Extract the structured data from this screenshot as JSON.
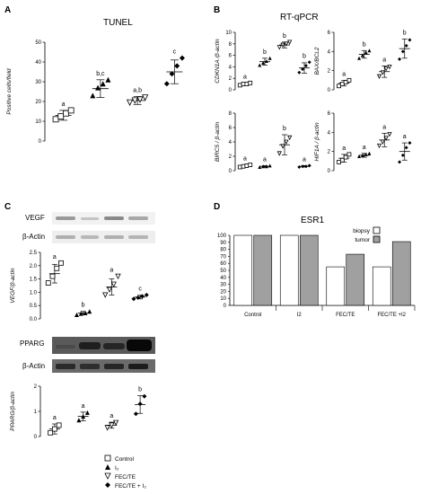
{
  "panels": {
    "A": "A",
    "B": "B",
    "C": "C",
    "D": "D"
  },
  "legend_c": [
    "Control",
    "I₂",
    "FEC/TE",
    "FEC/TE + I₂"
  ],
  "legend_d": [
    "biopsy",
    "tumor"
  ],
  "gels": {
    "vegf_label": "VEGF",
    "bactin_label1": "β-Actin",
    "pparg_label": "PPARG",
    "bactin_label2": "β-Actin"
  },
  "colors": {
    "tumor_bar": "#a0a0a0",
    "biopsy_bar": "#ffffff",
    "axis": "#000000"
  },
  "chart_data": [
    {
      "id": "tunel",
      "type": "scatter",
      "title": "TUNEL",
      "ylabel": "Positive cells/field",
      "ylim": [
        0,
        50
      ],
      "yticks": [
        "0",
        "10",
        "20",
        "30",
        "40",
        "50"
      ],
      "categories": [
        "Control",
        "I2",
        "FEC/TE",
        "FEC/TE + I2"
      ],
      "markers": [
        "square-open",
        "triangle-filled",
        "triangle-open",
        "diamond-filled"
      ],
      "series": [
        {
          "values": [
            11,
            12.5,
            14,
            15.5
          ],
          "mean": 13,
          "sd": 2.5,
          "letter": "a"
        },
        {
          "values": [
            23,
            27,
            29,
            31
          ],
          "mean": 26.5,
          "sd": 4.5,
          "letter": "b,c"
        },
        {
          "values": [
            19.5,
            20.5,
            21,
            22
          ],
          "mean": 20.5,
          "sd": 2,
          "letter": "a,b"
        },
        {
          "values": [
            29,
            34,
            38,
            42
          ],
          "mean": 35,
          "sd": 6,
          "letter": "c"
        }
      ]
    },
    {
      "id": "cdkn1a",
      "type": "scatter",
      "group_title": "RT-qPCR",
      "ylabel": "CDKN1A /β-actin",
      "ylim": [
        0,
        10
      ],
      "yticks": [
        "0",
        "2",
        "4",
        "6",
        "8",
        "10"
      ],
      "categories": [
        "Control",
        "I2",
        "FEC/TE",
        "FEC/TE + I2"
      ],
      "markers": [
        "square-open",
        "triangle-filled",
        "triangle-open",
        "diamond-filled"
      ],
      "series": [
        {
          "values": [
            0.8,
            1.0,
            1.0,
            1.2
          ],
          "mean": 1.0,
          "sd": 0.2,
          "letter": "a"
        },
        {
          "values": [
            4.3,
            4.7,
            5.0,
            5.5
          ],
          "mean": 4.9,
          "sd": 0.6,
          "letter": "b"
        },
        {
          "values": [
            7.4,
            7.8,
            8.0,
            8.3
          ],
          "mean": 7.8,
          "sd": 0.5,
          "letter": "b"
        },
        {
          "values": [
            3.0,
            3.6,
            4.2,
            4.8
          ],
          "mean": 3.8,
          "sd": 0.9,
          "letter": "b"
        }
      ]
    },
    {
      "id": "baxbcl2",
      "type": "scatter",
      "ylabel": "BAX/BCL2",
      "ylim": [
        0,
        6
      ],
      "yticks": [
        "0",
        "2",
        "4",
        "6"
      ],
      "categories": [
        "Control",
        "I2",
        "FEC/TE",
        "FEC/TE + I2"
      ],
      "markers": [
        "square-open",
        "triangle-filled",
        "triangle-open",
        "diamond-filled"
      ],
      "series": [
        {
          "values": [
            0.4,
            0.6,
            0.8,
            1.0
          ],
          "mean": 0.7,
          "sd": 0.3,
          "letter": "a"
        },
        {
          "values": [
            3.3,
            3.6,
            3.9,
            4.1
          ],
          "mean": 3.7,
          "sd": 0.4,
          "letter": "b"
        },
        {
          "values": [
            1.4,
            1.8,
            2.2,
            2.4
          ],
          "mean": 1.9,
          "sd": 0.6,
          "letter": "a"
        },
        {
          "values": [
            3.2,
            4.0,
            4.6,
            5.2
          ],
          "mean": 4.3,
          "sd": 1.0,
          "letter": "b"
        }
      ]
    },
    {
      "id": "birc5",
      "type": "scatter",
      "ylabel": "BIRC5 / β-actin",
      "ylim": [
        0,
        8
      ],
      "yticks": [
        "0",
        "2",
        "4",
        "6",
        "8"
      ],
      "categories": [
        "Control",
        "I2",
        "FEC/TE",
        "FEC/TE + I2"
      ],
      "markers": [
        "square-open",
        "triangle-filled",
        "triangle-open",
        "diamond-filled"
      ],
      "series": [
        {
          "values": [
            0.5,
            0.6,
            0.7,
            0.8
          ],
          "mean": 0.6,
          "sd": 0.15,
          "letter": "a"
        },
        {
          "values": [
            0.5,
            0.6,
            0.6,
            0.7
          ],
          "mean": 0.6,
          "sd": 0.1,
          "letter": "a"
        },
        {
          "values": [
            2.4,
            3.4,
            4.0,
            4.6
          ],
          "mean": 3.6,
          "sd": 1.4,
          "letter": "b"
        },
        {
          "values": [
            0.5,
            0.6,
            0.6,
            0.7
          ],
          "mean": 0.6,
          "sd": 0.1,
          "letter": "a"
        }
      ]
    },
    {
      "id": "hif1a",
      "type": "scatter",
      "ylabel": "HIF1A / β-actin",
      "ylim": [
        0,
        6
      ],
      "yticks": [
        "0",
        "2",
        "4",
        "6"
      ],
      "categories": [
        "Control",
        "I2",
        "FEC/TE",
        "FEC/TE + I2"
      ],
      "markers": [
        "square-open",
        "triangle-filled",
        "triangle-open",
        "diamond-filled"
      ],
      "series": [
        {
          "values": [
            0.9,
            1.1,
            1.4,
            1.7
          ],
          "mean": 1.3,
          "sd": 0.4,
          "letter": "a"
        },
        {
          "values": [
            1.5,
            1.6,
            1.7,
            1.8
          ],
          "mean": 1.6,
          "sd": 0.2,
          "letter": "a"
        },
        {
          "values": [
            2.6,
            3.0,
            3.4,
            3.8
          ],
          "mean": 3.2,
          "sd": 0.7,
          "letter": "a"
        },
        {
          "values": [
            0.9,
            1.6,
            2.4,
            2.9
          ],
          "mean": 2.0,
          "sd": 0.9,
          "letter": "a"
        }
      ]
    },
    {
      "id": "vegf",
      "type": "scatter",
      "ylabel": "VEGF/β-actin",
      "ylim": [
        0,
        2.5
      ],
      "yticks": [
        "0.0",
        "0.5",
        "1.0",
        "1.5",
        "2.0",
        "2.5"
      ],
      "categories": [
        "Control",
        "I2",
        "FEC/TE",
        "FEC/TE + I2"
      ],
      "markers": [
        "square-open",
        "triangle-filled",
        "triangle-open",
        "diamond-filled"
      ],
      "series": [
        {
          "values": [
            1.35,
            1.6,
            1.9,
            2.1
          ],
          "mean": 1.7,
          "sd": 0.35,
          "letter": "a"
        },
        {
          "values": [
            0.15,
            0.2,
            0.22,
            0.28
          ],
          "mean": 0.22,
          "sd": 0.06,
          "letter": "b"
        },
        {
          "values": [
            0.9,
            1.1,
            1.3,
            1.6
          ],
          "mean": 1.2,
          "sd": 0.3,
          "letter": "a"
        },
        {
          "values": [
            0.75,
            0.8,
            0.85,
            0.9
          ],
          "mean": 0.82,
          "sd": 0.07,
          "letter": "c"
        }
      ]
    },
    {
      "id": "pparg",
      "type": "scatter",
      "ylabel": "PPARG/β-actin",
      "ylim": [
        0,
        2
      ],
      "yticks": [
        "0",
        "1",
        "2"
      ],
      "categories": [
        "Control",
        "I2",
        "FEC/TE",
        "FEC/TE + I2"
      ],
      "markers": [
        "square-open",
        "triangle-filled",
        "triangle-open",
        "diamond-filled"
      ],
      "series": [
        {
          "values": [
            0.15,
            0.3,
            0.45
          ],
          "mean": 0.3,
          "sd": 0.2,
          "letter": "a"
        },
        {
          "values": [
            0.65,
            0.8,
            0.95
          ],
          "mean": 0.8,
          "sd": 0.17,
          "letter": "a"
        },
        {
          "values": [
            0.35,
            0.45,
            0.55
          ],
          "mean": 0.45,
          "sd": 0.12,
          "letter": "a"
        },
        {
          "values": [
            0.9,
            1.3,
            1.6
          ],
          "mean": 1.27,
          "sd": 0.35,
          "letter": "b"
        }
      ]
    },
    {
      "id": "esr1",
      "type": "bar",
      "title": "ESR1",
      "ylim": [
        0,
        100
      ],
      "yticks": [
        "0",
        "10",
        "20",
        "30",
        "40",
        "50",
        "60",
        "70",
        "80",
        "90",
        "100"
      ],
      "categories": [
        "Control",
        "I2",
        "FEC/TE",
        "FEC/TE +I2"
      ],
      "series": [
        {
          "name": "biopsy",
          "values": [
            100,
            100,
            55,
            55
          ]
        },
        {
          "name": "tumor",
          "values": [
            100,
            100,
            73,
            91
          ]
        }
      ],
      "legend": "top-right"
    }
  ]
}
